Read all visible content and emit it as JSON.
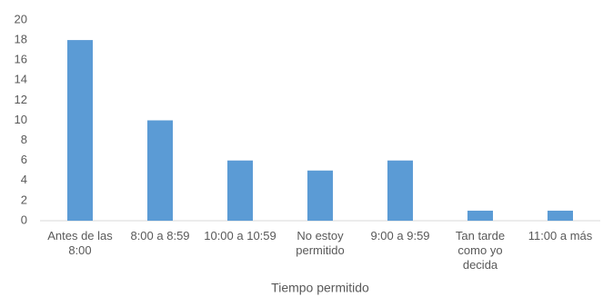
{
  "chart_data": {
    "type": "bar",
    "x_label": "Tiempo permitido",
    "categories": [
      "Antes de las 8:00",
      "8:00 a 8:59",
      "10:00 a 10:59",
      "No estoy permitido",
      "9:00 a 9:59",
      "Tan tarde como yo decida",
      "11:00 a más"
    ],
    "values": [
      18,
      10,
      6,
      5,
      6,
      1,
      1
    ],
    "color": "#5b9bd5",
    "ylim": [
      0,
      20
    ],
    "yticks": [
      0,
      2,
      4,
      6,
      8,
      10,
      12,
      14,
      16,
      18,
      20
    ],
    "grid": false
  }
}
